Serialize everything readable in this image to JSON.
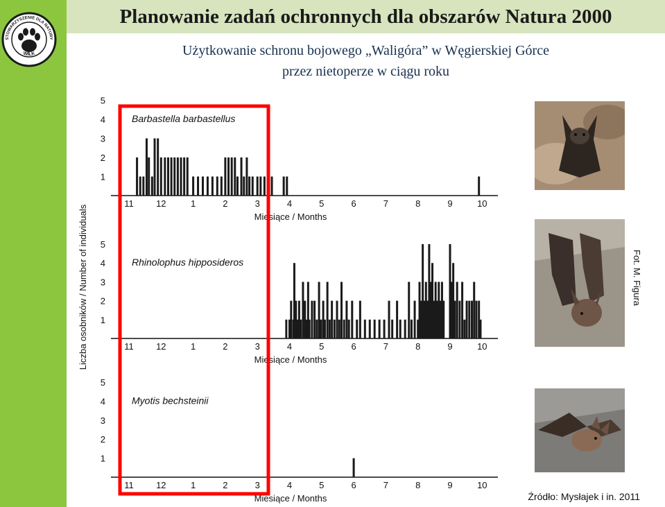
{
  "header": {
    "title": "Planowanie zadań ochronnych dla obszarów Natura 2000",
    "subtitle_line1": "Użytkowanie schronu bojowego „Waligóra” w Węgierskiej Górce",
    "subtitle_line2": "przez nietoperze w ciągu roku"
  },
  "logo": {
    "text_top": "STOWARZYSZENIE DLA NATURY",
    "text_bottom": "WILK",
    "icon": "paw-icon",
    "color": "#1a1a1a"
  },
  "colors": {
    "left_band": "#8cc63f",
    "title_bar": "#d7e4bd",
    "bars": "#1a1a1a",
    "highlight": "#ff0000"
  },
  "photo_credit": "Fot. M. Figura",
  "source_note": "Źródło: Mysłajek i in. 2011",
  "chart_data": [
    {
      "type": "bar",
      "series_name": "Barbastella barbastellus",
      "x_ticks": [
        "11",
        "12",
        "1",
        "2",
        "3",
        "4",
        "5",
        "6",
        "7",
        "8",
        "9",
        "10"
      ],
      "y_ticks": [
        "1",
        "2",
        "3",
        "4",
        "5"
      ],
      "ylim": [
        0,
        5
      ],
      "xlabel": "Miesiące / Months",
      "x_unit": "month (11 = 1 Nov, 22 = 1 Oct)",
      "bars": [
        [
          11.25,
          2
        ],
        [
          11.35,
          1
        ],
        [
          11.45,
          1
        ],
        [
          11.55,
          3
        ],
        [
          11.62,
          2
        ],
        [
          11.72,
          1
        ],
        [
          11.8,
          3
        ],
        [
          11.9,
          3
        ],
        [
          12.0,
          2
        ],
        [
          12.12,
          2
        ],
        [
          12.22,
          2
        ],
        [
          12.32,
          2
        ],
        [
          12.42,
          2
        ],
        [
          12.52,
          2
        ],
        [
          12.62,
          2
        ],
        [
          12.72,
          2
        ],
        [
          12.82,
          2
        ],
        [
          13.0,
          1
        ],
        [
          13.15,
          1
        ],
        [
          13.3,
          1
        ],
        [
          13.45,
          1
        ],
        [
          13.6,
          1
        ],
        [
          13.75,
          1
        ],
        [
          13.88,
          1
        ],
        [
          14.0,
          2
        ],
        [
          14.1,
          2
        ],
        [
          14.2,
          2
        ],
        [
          14.3,
          2
        ],
        [
          14.38,
          1
        ],
        [
          14.5,
          2
        ],
        [
          14.58,
          1
        ],
        [
          14.67,
          2
        ],
        [
          14.75,
          1
        ],
        [
          14.85,
          1
        ],
        [
          15.0,
          1
        ],
        [
          15.1,
          1
        ],
        [
          15.22,
          1
        ],
        [
          15.32,
          1
        ],
        [
          15.45,
          1
        ],
        [
          15.82,
          1
        ],
        [
          15.92,
          1
        ],
        [
          21.9,
          1
        ]
      ]
    },
    {
      "type": "bar",
      "series_name": "Rhinolophus hipposideros",
      "x_ticks": [
        "11",
        "12",
        "1",
        "2",
        "3",
        "4",
        "5",
        "6",
        "7",
        "8",
        "9",
        "10"
      ],
      "y_ticks": [
        "1",
        "2",
        "3",
        "4",
        "5"
      ],
      "ylim": [
        0,
        5
      ],
      "xlabel": "Miesiące / Months",
      "x_unit": "month (11 = 1 Nov, 22 = 1 Oct)",
      "bars": [
        [
          15.9,
          1
        ],
        [
          16.0,
          1
        ],
        [
          16.05,
          2
        ],
        [
          16.12,
          1
        ],
        [
          16.15,
          4
        ],
        [
          16.2,
          2
        ],
        [
          16.25,
          1
        ],
        [
          16.3,
          2
        ],
        [
          16.35,
          1
        ],
        [
          16.42,
          3
        ],
        [
          16.48,
          2
        ],
        [
          16.52,
          1
        ],
        [
          16.58,
          3
        ],
        [
          16.62,
          1
        ],
        [
          16.7,
          2
        ],
        [
          16.78,
          2
        ],
        [
          16.85,
          1
        ],
        [
          16.92,
          3
        ],
        [
          16.98,
          1
        ],
        [
          17.05,
          2
        ],
        [
          17.1,
          1
        ],
        [
          17.18,
          3
        ],
        [
          17.25,
          1
        ],
        [
          17.32,
          2
        ],
        [
          17.4,
          1
        ],
        [
          17.48,
          2
        ],
        [
          17.55,
          1
        ],
        [
          17.62,
          3
        ],
        [
          17.7,
          1
        ],
        [
          17.78,
          2
        ],
        [
          17.85,
          1
        ],
        [
          17.95,
          2
        ],
        [
          18.1,
          1
        ],
        [
          18.2,
          2
        ],
        [
          18.35,
          1
        ],
        [
          18.5,
          1
        ],
        [
          18.65,
          1
        ],
        [
          18.8,
          1
        ],
        [
          18.95,
          1
        ],
        [
          19.1,
          2
        ],
        [
          19.2,
          1
        ],
        [
          19.35,
          2
        ],
        [
          19.45,
          1
        ],
        [
          19.6,
          1
        ],
        [
          19.72,
          3
        ],
        [
          19.8,
          1
        ],
        [
          19.9,
          2
        ],
        [
          20.0,
          1
        ],
        [
          20.05,
          3
        ],
        [
          20.1,
          2
        ],
        [
          20.15,
          5
        ],
        [
          20.2,
          2
        ],
        [
          20.25,
          3
        ],
        [
          20.3,
          2
        ],
        [
          20.35,
          5
        ],
        [
          20.4,
          3
        ],
        [
          20.45,
          4
        ],
        [
          20.5,
          2
        ],
        [
          20.55,
          3
        ],
        [
          20.6,
          2
        ],
        [
          20.65,
          3
        ],
        [
          20.7,
          2
        ],
        [
          20.75,
          3
        ],
        [
          20.8,
          2
        ],
        [
          21.0,
          5
        ],
        [
          21.05,
          3
        ],
        [
          21.1,
          4
        ],
        [
          21.15,
          2
        ],
        [
          21.22,
          3
        ],
        [
          21.3,
          2
        ],
        [
          21.38,
          3
        ],
        [
          21.45,
          1
        ],
        [
          21.52,
          2
        ],
        [
          21.6,
          2
        ],
        [
          21.68,
          2
        ],
        [
          21.75,
          3
        ],
        [
          21.82,
          2
        ],
        [
          21.9,
          2
        ],
        [
          21.95,
          1
        ]
      ]
    },
    {
      "type": "bar",
      "series_name": "Myotis bechsteinii",
      "x_ticks": [
        "11",
        "12",
        "1",
        "2",
        "3",
        "4",
        "5",
        "6",
        "7",
        "8",
        "9",
        "10"
      ],
      "y_ticks": [
        "1",
        "2",
        "3",
        "4",
        "5"
      ],
      "ylim": [
        0,
        5
      ],
      "xlabel": "Miesiące / Months",
      "x_unit": "month (11 = 1 Nov, 22 = 1 Oct)",
      "bars": [
        [
          18.0,
          1
        ]
      ]
    }
  ],
  "shared_ylabel": "Liczba osobników / Number of individuals"
}
